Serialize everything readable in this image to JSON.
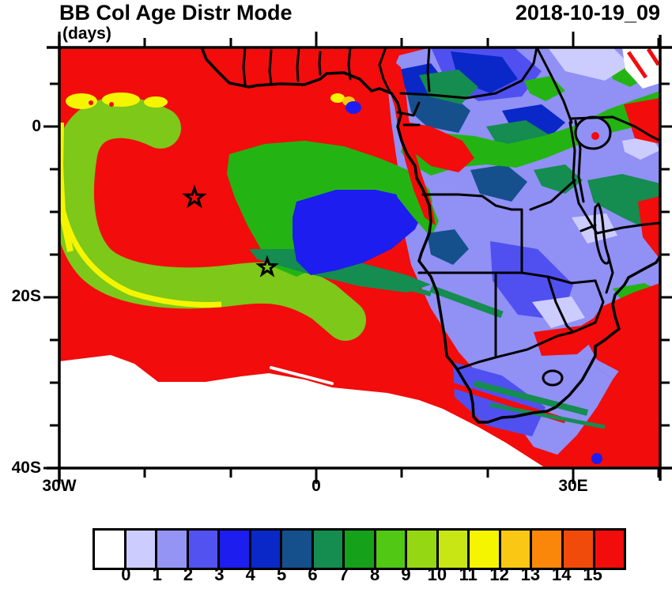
{
  "header": {
    "title": "BB Col Age Distr Mode",
    "subtitle": "(days)",
    "datetime": "2018-10-19_09"
  },
  "axes": {
    "y_ticks": [
      "0",
      "20S",
      "40S"
    ],
    "x_ticks": [
      "30W",
      "0",
      "30E"
    ]
  },
  "colorbar": {
    "values": [
      "0",
      "1",
      "2",
      "3",
      "4",
      "5",
      "6",
      "7",
      "8",
      "9",
      "10",
      "11",
      "12",
      "13",
      "14",
      "15"
    ],
    "colors": [
      "#ffffff",
      "#ccccff",
      "#9494f5",
      "#5252f0",
      "#1d1df0",
      "#0a28c8",
      "#15508c",
      "#158c50",
      "#16a11b",
      "#50c814",
      "#96d714",
      "#c8e614",
      "#f5f500",
      "#fac814",
      "#fa870a",
      "#f04b0a",
      "#f20c0c"
    ]
  },
  "palette": {
    "red": "#f20c0c",
    "yellow": "#f5f500",
    "gold": "#fac814",
    "light_green": "#7dc819",
    "green": "#23b414",
    "sea_green": "#158c50",
    "steel_blue": "#15508c",
    "navy": "#0a28c8",
    "blue": "#1d1df0",
    "medium_blue": "#5050f0",
    "periwinkle": "#9090f5",
    "lavender": "#ccccff",
    "white": "#ffffff",
    "line": "#000000"
  },
  "map": {
    "marker_type": "star",
    "marker_count": 2
  }
}
